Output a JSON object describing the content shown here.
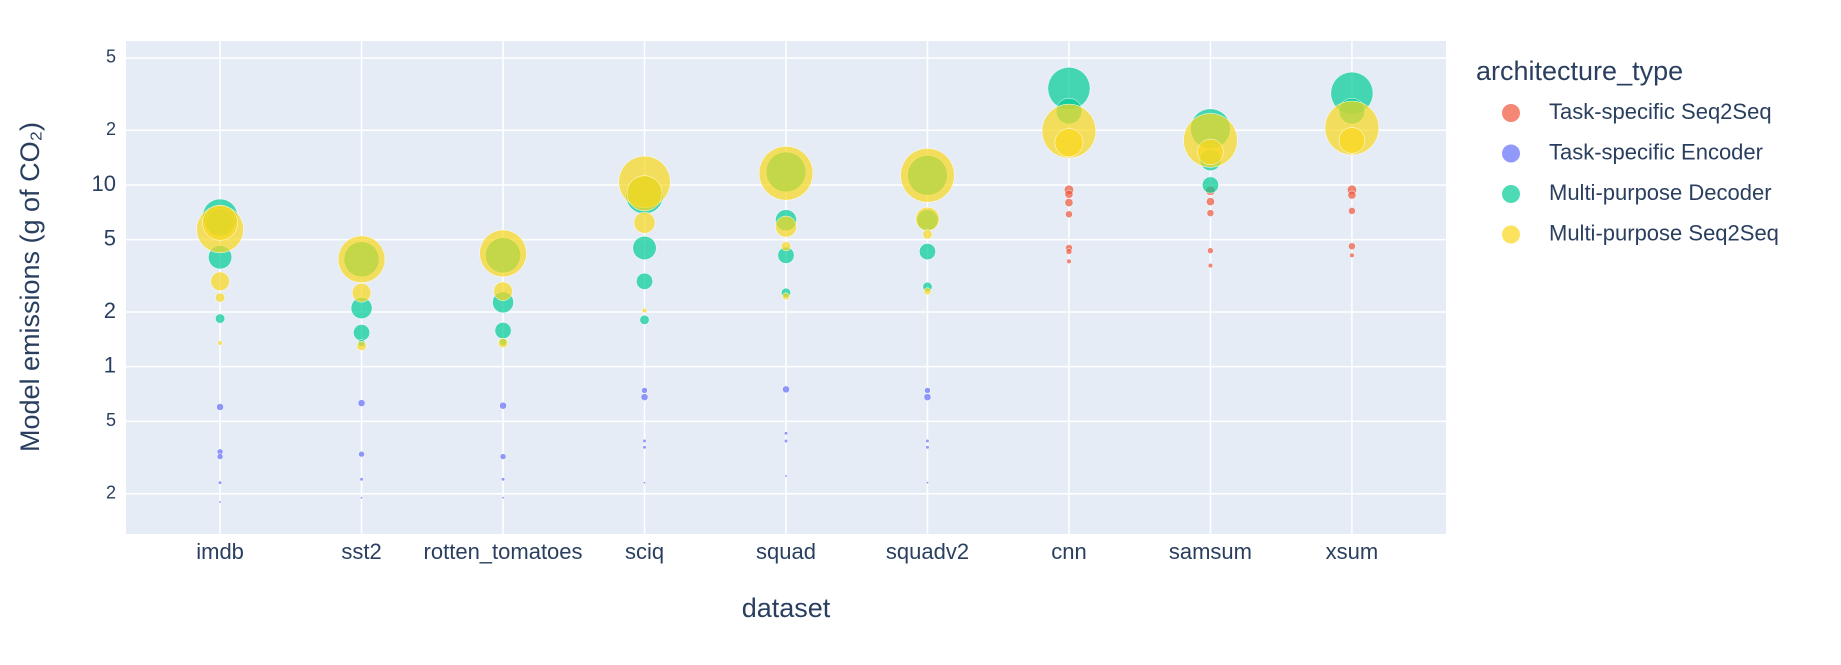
{
  "chart_data": {
    "type": "scatter",
    "x_label": "dataset",
    "y_label": "Model emissions (g of CO₂)",
    "legend_title": "architecture_type",
    "categories": [
      "imdb",
      "sst2",
      "rotten_tomatoes",
      "sciq",
      "squad",
      "squadv2",
      "cnn",
      "samsum",
      "xsum"
    ],
    "log_y": true,
    "grid": true,
    "legend_position": "right",
    "ylim": [
      0.12,
      62
    ],
    "yticks": [
      {
        "value": 0.2,
        "label": "2"
      },
      {
        "value": 0.5,
        "label": "5"
      },
      1,
      2,
      5,
      10,
      {
        "value": 20,
        "label": "2"
      },
      {
        "value": 50,
        "label": "5"
      }
    ],
    "series": [
      {
        "name": "Task-specific Seq2Seq",
        "color": "#EF553B",
        "x": [
          "cnn",
          "cnn",
          "cnn",
          "cnn",
          "cnn",
          "cnn",
          "cnn",
          "samsum",
          "samsum",
          "samsum",
          "samsum",
          "samsum",
          "xsum",
          "xsum",
          "xsum",
          "xsum",
          "xsum"
        ],
        "values": [
          9.4,
          8.9,
          8.0,
          6.9,
          4.5,
          4.3,
          3.8,
          9.3,
          8.1,
          7.0,
          4.35,
          3.6,
          9.4,
          8.8,
          7.2,
          4.6,
          4.1
        ],
        "sizes": [
          8,
          7,
          7,
          6,
          6,
          5,
          4,
          8,
          7,
          6,
          5,
          4,
          8,
          7,
          6,
          6,
          4
        ]
      },
      {
        "name": "Task-specific Encoder",
        "color": "#636EFA",
        "x": [
          "imdb",
          "imdb",
          "imdb",
          "imdb",
          "imdb",
          "sst2",
          "sst2",
          "sst2",
          "sst2",
          "rotten_tomatoes",
          "rotten_tomatoes",
          "rotten_tomatoes",
          "rotten_tomatoes",
          "sciq",
          "sciq",
          "sciq",
          "sciq",
          "sciq",
          "squad",
          "squad",
          "squad",
          "squad",
          "squadv2",
          "squadv2",
          "squadv2",
          "squadv2",
          "squadv2"
        ],
        "values": [
          0.6,
          0.34,
          0.32,
          0.23,
          0.18,
          0.63,
          0.33,
          0.24,
          0.19,
          0.61,
          0.32,
          0.24,
          0.19,
          0.74,
          0.68,
          0.39,
          0.36,
          0.23,
          0.75,
          0.43,
          0.39,
          0.25,
          0.74,
          0.68,
          0.39,
          0.36,
          0.23
        ],
        "sizes": [
          6,
          5,
          5,
          3,
          2,
          6,
          5,
          3,
          2,
          6,
          5,
          3,
          2,
          5,
          6,
          3,
          3,
          2,
          6,
          3,
          3,
          2,
          5,
          6,
          3,
          3,
          2
        ]
      },
      {
        "name": "Multi-purpose Decoder",
        "color": "#00CC96",
        "x": [
          "imdb",
          "imdb",
          "imdb",
          "imdb",
          "sst2",
          "sst2",
          "sst2",
          "sst2",
          "rotten_tomatoes",
          "rotten_tomatoes",
          "rotten_tomatoes",
          "rotten_tomatoes",
          "sciq",
          "sciq",
          "sciq",
          "sciq",
          "squad",
          "squad",
          "squad",
          "squad",
          "squadv2",
          "squadv2",
          "squadv2",
          "squadv2",
          "cnn",
          "cnn",
          "samsum",
          "samsum",
          "samsum",
          "xsum",
          "xsum"
        ],
        "values": [
          6.7,
          6.2,
          4.0,
          1.84,
          3.9,
          2.1,
          1.54,
          1.35,
          4.1,
          2.26,
          1.58,
          1.37,
          8.8,
          4.5,
          2.95,
          1.81,
          11.8,
          6.4,
          4.1,
          2.55,
          11.3,
          6.4,
          4.3,
          2.75,
          34,
          25.5,
          20.4,
          13.7,
          10,
          32,
          25.5
        ],
        "sizes": [
          30,
          24,
          20,
          8,
          30,
          18,
          14,
          6,
          30,
          18,
          14,
          6,
          32,
          20,
          14,
          8,
          34,
          18,
          14,
          8,
          34,
          18,
          14,
          8,
          36,
          22,
          34,
          18,
          14,
          36,
          22
        ]
      },
      {
        "name": "Multi-purpose Seq2Seq",
        "color": "#F9D71C",
        "x": [
          "imdb",
          "imdb",
          "imdb",
          "imdb",
          "imdb",
          "sst2",
          "sst2",
          "sst2",
          "rotten_tomatoes",
          "rotten_tomatoes",
          "rotten_tomatoes",
          "sciq",
          "sciq",
          "sciq",
          "sciq",
          "squad",
          "squad",
          "squad",
          "squad",
          "squadv2",
          "squadv2",
          "squadv2",
          "squadv2",
          "cnn",
          "cnn",
          "samsum",
          "samsum",
          "xsum",
          "xsum"
        ],
        "values": [
          5.7,
          6.2,
          2.95,
          2.4,
          1.35,
          3.9,
          2.55,
          1.3,
          4.2,
          2.6,
          1.35,
          10.4,
          9.0,
          6.2,
          2.04,
          11.6,
          5.9,
          4.6,
          2.44,
          11.3,
          6.5,
          5.35,
          2.6,
          19.8,
          17.1,
          17.6,
          15.2,
          20.6,
          17.6
        ],
        "sizes": [
          40,
          30,
          16,
          8,
          4,
          40,
          16,
          8,
          40,
          16,
          8,
          44,
          30,
          18,
          4,
          46,
          18,
          8,
          6,
          46,
          20,
          8,
          6,
          46,
          24,
          46,
          22,
          46,
          22
        ]
      }
    ]
  }
}
